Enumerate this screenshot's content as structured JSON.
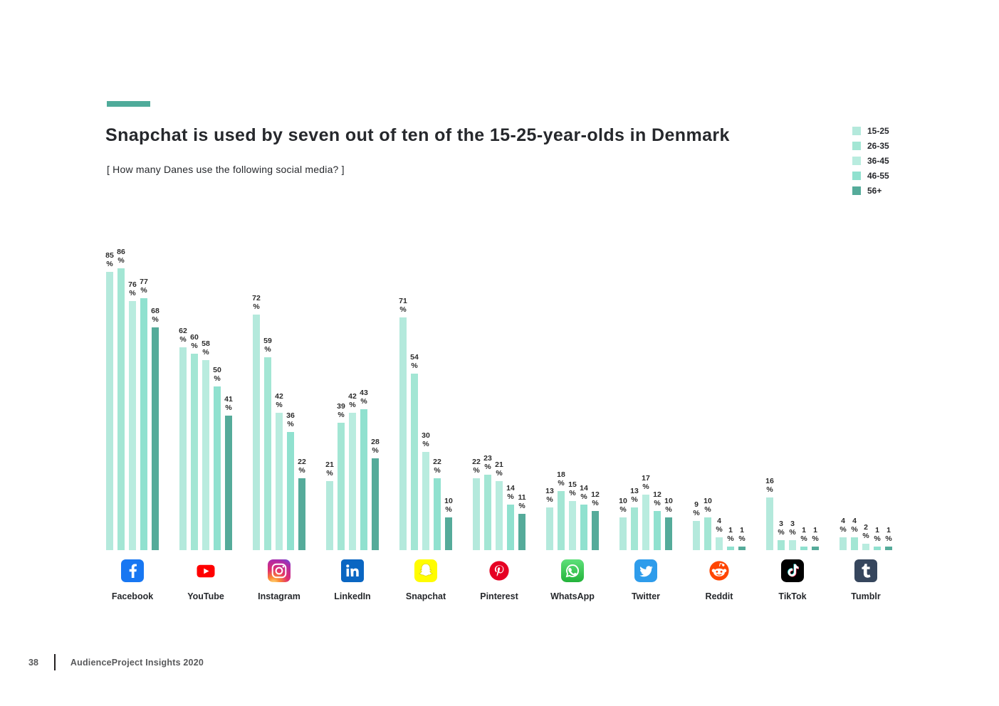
{
  "page": {
    "title": "Snapchat is used by seven out of ten of the 15-25-year-olds in Denmark",
    "subtitle": "[ How many Danes use the following social media? ]",
    "accent_color": "#4fab9a",
    "footer": {
      "page_number": "38",
      "source": "AudienceProject Insights 2020"
    }
  },
  "chart_data": {
    "type": "bar",
    "title": "Snapchat is used by seven out of ten of the 15-25-year-olds in Denmark",
    "question": "[ How many Danes use the following social media? ]",
    "unit": "%",
    "ylim": [
      0,
      100
    ],
    "grid": false,
    "legend_position": "top-right",
    "categories": [
      "Facebook",
      "YouTube",
      "Instagram",
      "LinkedIn",
      "Snapchat",
      "Pinterest",
      "WhatsApp",
      "Twitter",
      "Reddit",
      "TikTok",
      "Tumblr"
    ],
    "icons": [
      "facebook-icon",
      "youtube-icon",
      "instagram-icon",
      "linkedin-icon",
      "snapchat-icon",
      "pinterest-icon",
      "whatsapp-icon",
      "twitter-icon",
      "reddit-icon",
      "tiktok-icon",
      "tumblr-icon"
    ],
    "series": [
      {
        "name": "15-25",
        "color": "#b4e9dc",
        "values": [
          85,
          62,
          72,
          21,
          71,
          22,
          13,
          10,
          9,
          16,
          4
        ]
      },
      {
        "name": "26-35",
        "color": "#a3e6d4",
        "values": [
          86,
          60,
          59,
          39,
          54,
          23,
          18,
          13,
          10,
          3,
          4
        ]
      },
      {
        "name": "36-45",
        "color": "#b9ecdf",
        "values": [
          76,
          58,
          42,
          42,
          30,
          21,
          15,
          17,
          4,
          3,
          2
        ]
      },
      {
        "name": "46-55",
        "color": "#90e1cf",
        "values": [
          77,
          50,
          36,
          43,
          22,
          14,
          14,
          12,
          1,
          1,
          1
        ]
      },
      {
        "name": "56+",
        "color": "#55ab9a",
        "values": [
          68,
          41,
          22,
          28,
          10,
          11,
          12,
          10,
          1,
          1,
          1
        ]
      }
    ]
  }
}
